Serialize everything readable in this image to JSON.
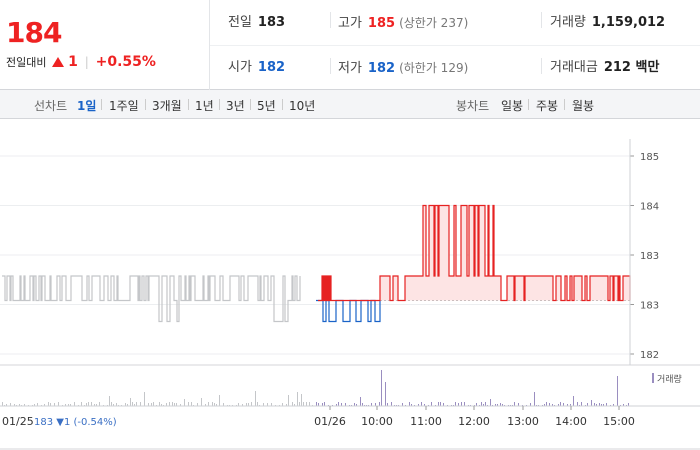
{
  "quote": {
    "price": "184",
    "change_label": "전일대비",
    "change_abs": "1",
    "change_pct": "+0.55%",
    "prev_close_label": "전일",
    "prev_close": "183",
    "high_label": "고가",
    "high": "185",
    "upper_limit": "(상한가 237)",
    "volume_label": "거래량",
    "volume": "1,159,012",
    "open_label": "시가",
    "open": "182",
    "low_label": "저가",
    "low": "182",
    "lower_limit": "(하한가 129)",
    "amount_label": "거래대금",
    "amount": "212 백만"
  },
  "tabs": {
    "line_label": "선차트",
    "line_tabs": [
      "1일",
      "1주일",
      "3개월",
      "1년",
      "3년",
      "5년",
      "10년"
    ],
    "candle_label": "봉차트",
    "candle_tabs": [
      "일봉",
      "주봉",
      "월봉"
    ]
  },
  "colors": {
    "up": "#e62222",
    "down": "#1a63c8",
    "prev_day": "#c4c6c9",
    "fill_up": "#fde4e4"
  },
  "chart_data": {
    "type": "line",
    "y_ticks": [
      "185",
      "184",
      "183",
      "183",
      "182"
    ],
    "ylim": [
      182,
      185
    ],
    "x_ticks": [
      "01/26",
      "10:00",
      "11:00",
      "12:00",
      "13:00",
      "14:00",
      "15:00"
    ],
    "prev_day_x_label": "01/25",
    "reference_price": 182.5,
    "prev_summary": {
      "close": "183",
      "arrow": "▼",
      "change": "1",
      "pct": "(-0.54%)"
    },
    "volume_legend": "거래량",
    "series": [
      {
        "segment": "prev_day",
        "range": [
          "01/25 09:00",
          "01/25 15:30"
        ],
        "levels": [
          183,
          182.5,
          182
        ],
        "dominant": 183
      },
      {
        "segment": "today_below_ref",
        "range": [
          "09:00",
          "09:42"
        ],
        "levels": [
          182.5,
          182
        ],
        "dominant": 182.5
      },
      {
        "segment": "today_above_ref",
        "range": [
          "09:42",
          "15:30"
        ],
        "levels": [
          182.5,
          183,
          184
        ],
        "dominant": 183
      }
    ]
  }
}
